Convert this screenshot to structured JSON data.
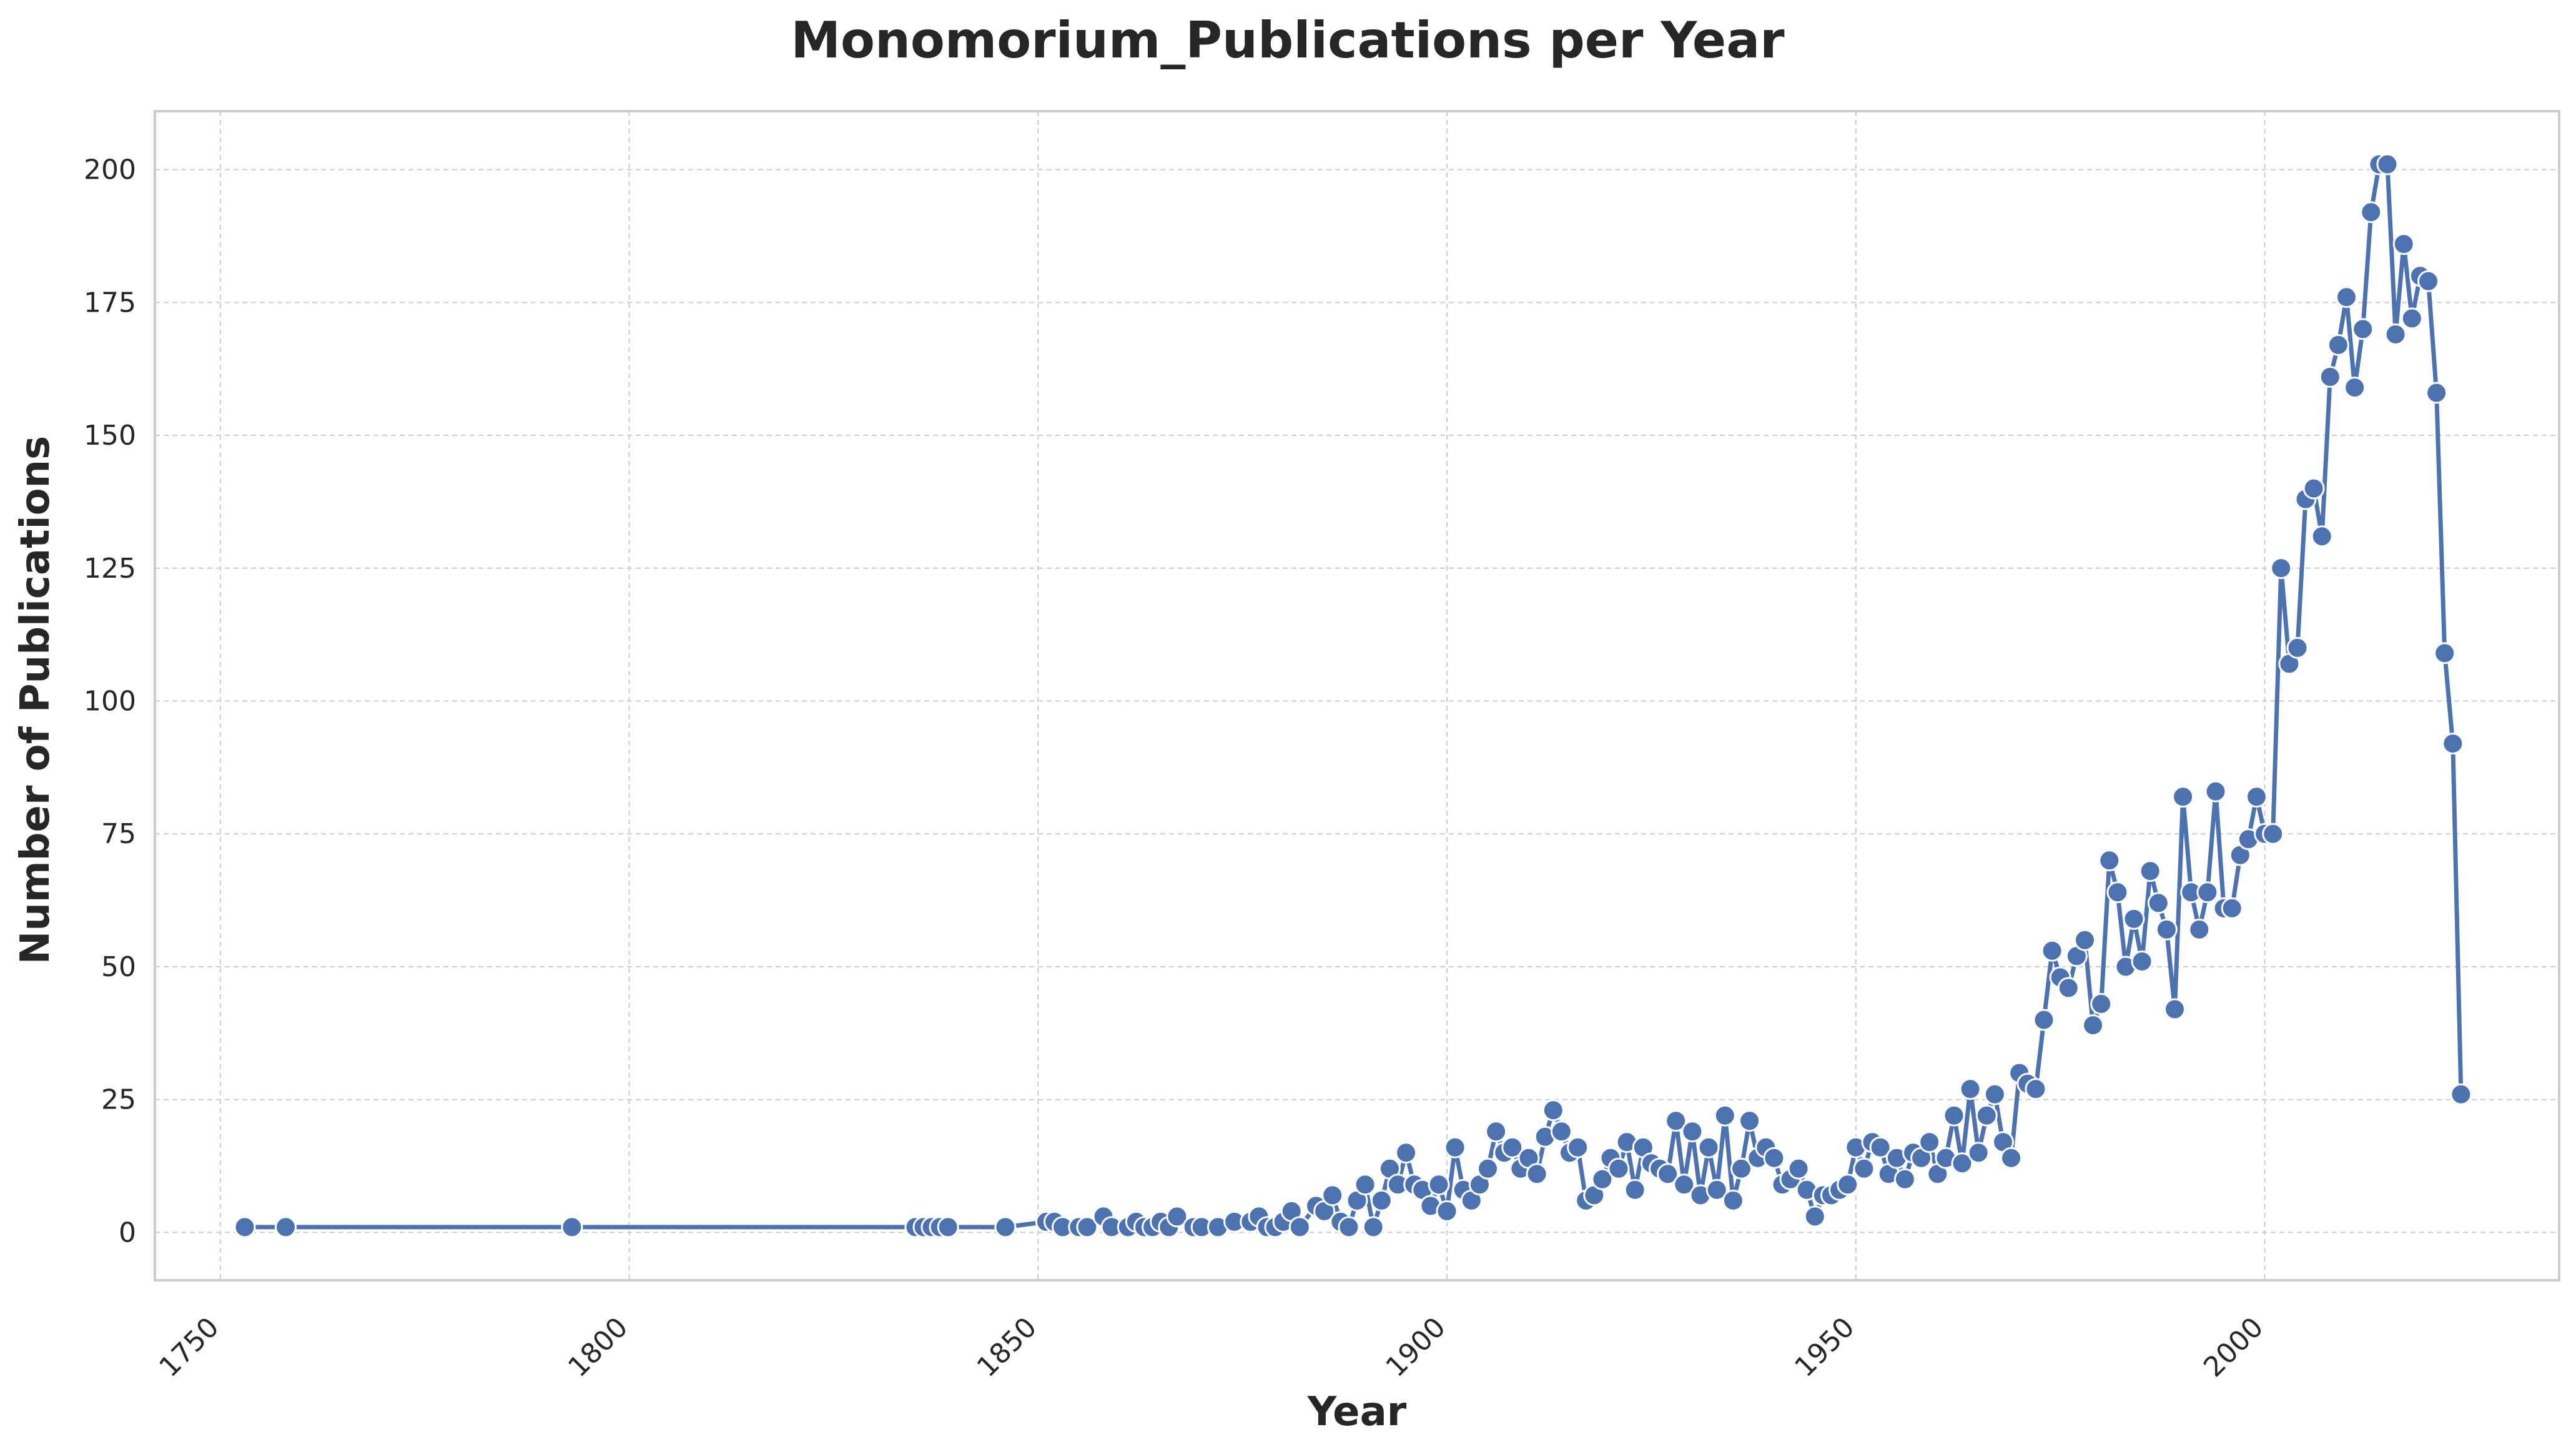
{
  "chart_data": {
    "type": "line",
    "title": "Monomorium_Publications per Year",
    "xlabel": "Year",
    "ylabel": "Number of Publications",
    "xlim": [
      1742,
      2036
    ],
    "ylim": [
      -9,
      211
    ],
    "xticks": [
      1750,
      1800,
      1850,
      1900,
      1950,
      2000
    ],
    "yticks": [
      0,
      25,
      50,
      75,
      100,
      125,
      150,
      175,
      200
    ],
    "grid": true,
    "legend": "none",
    "colors": {
      "series": "#4c72b0",
      "grid": "#cccccc",
      "frame": "#cccccc"
    },
    "series": [
      {
        "x": [
          1753,
          1758,
          1793,
          1835,
          1836,
          1837,
          1838,
          1839,
          1846,
          1851,
          1852,
          1853,
          1855,
          1856,
          1858,
          1859,
          1861,
          1862,
          1863,
          1864,
          1865,
          1866,
          1867,
          1869,
          1870,
          1872,
          1874,
          1876,
          1877,
          1878,
          1879,
          1880,
          1881,
          1882,
          1884,
          1885,
          1886,
          1887,
          1888,
          1889,
          1890,
          1891,
          1892,
          1893,
          1894,
          1895,
          1896,
          1897,
          1898,
          1899,
          1900,
          1901,
          1902,
          1903,
          1904,
          1905,
          1906,
          1907,
          1908,
          1909,
          1910,
          1911,
          1912,
          1913,
          1914,
          1915,
          1916,
          1917,
          1918,
          1919,
          1920,
          1921,
          1922,
          1923,
          1924,
          1925,
          1926,
          1927,
          1928,
          1929,
          1930,
          1931,
          1932,
          1933,
          1934,
          1935,
          1936,
          1937,
          1938,
          1939,
          1940,
          1941,
          1942,
          1943,
          1944,
          1945,
          1946,
          1947,
          1948,
          1949,
          1950,
          1951,
          1952,
          1953,
          1954,
          1955,
          1956,
          1957,
          1958,
          1959,
          1960,
          1961,
          1962,
          1963,
          1964,
          1965,
          1966,
          1967,
          1968,
          1969,
          1970,
          1971,
          1972,
          1973,
          1974,
          1975,
          1976,
          1977,
          1978,
          1979,
          1980,
          1981,
          1982,
          1983,
          1984,
          1985,
          1986,
          1987,
          1988,
          1989,
          1990,
          1991,
          1992,
          1993,
          1994,
          1995,
          1996,
          1997,
          1998,
          1999,
          2000,
          2001,
          2002,
          2003,
          2004,
          2005,
          2006,
          2007,
          2008,
          2009,
          2010,
          2011,
          2012,
          2013,
          2014,
          2015,
          2016,
          2017,
          2018,
          2019,
          2020,
          2021,
          2022,
          2023,
          2024
        ],
        "values": [
          1,
          1,
          1,
          1,
          1,
          1,
          1,
          1,
          1,
          2,
          2,
          1,
          1,
          1,
          3,
          1,
          1,
          2,
          1,
          1,
          2,
          1,
          3,
          1,
          1,
          1,
          2,
          2,
          3,
          1,
          1,
          2,
          4,
          1,
          5,
          4,
          7,
          2,
          1,
          6,
          9,
          1,
          6,
          12,
          9,
          15,
          9,
          8,
          5,
          9,
          4,
          16,
          8,
          6,
          9,
          12,
          19,
          15,
          16,
          12,
          14,
          11,
          18,
          23,
          19,
          15,
          16,
          6,
          7,
          10,
          14,
          12,
          17,
          8,
          16,
          13,
          12,
          11,
          21,
          9,
          19,
          7,
          16,
          8,
          22,
          6,
          12,
          21,
          14,
          16,
          14,
          9,
          10,
          12,
          8,
          3,
          7,
          7,
          8,
          9,
          16,
          12,
          17,
          16,
          11,
          14,
          10,
          15,
          14,
          17,
          11,
          14,
          22,
          13,
          27,
          15,
          22,
          26,
          17,
          14,
          30,
          28,
          27,
          40,
          53,
          48,
          46,
          52,
          55,
          39,
          43,
          70,
          64,
          50,
          59,
          51,
          68,
          62,
          57,
          42,
          82,
          64,
          57,
          64,
          83,
          61,
          61,
          71,
          74,
          82,
          75,
          75,
          125,
          107,
          110,
          138,
          140,
          131,
          161,
          167,
          176,
          159,
          170,
          192,
          201,
          201,
          169,
          186,
          172,
          180,
          179,
          158,
          109,
          92,
          26
        ]
      }
    ]
  }
}
